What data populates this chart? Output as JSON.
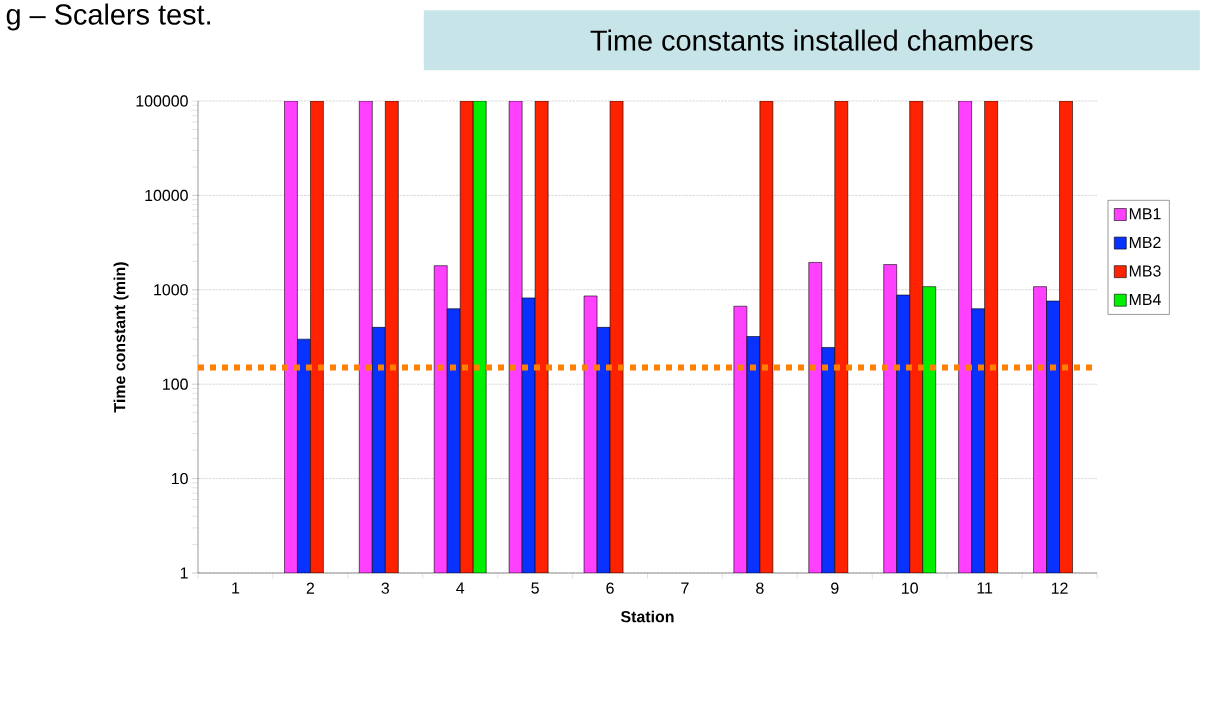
{
  "chart_data": {
    "type": "bar",
    "title": "Time constants installed chambers",
    "xlabel": "Station",
    "ylabel": "Time constant (min)",
    "annotations": [
      "g – Scalers test."
    ],
    "categories": [
      "1",
      "2",
      "3",
      "4",
      "5",
      "6",
      "7",
      "8",
      "9",
      "10",
      "11",
      "12"
    ],
    "series": [
      {
        "name": "MB1",
        "color": "#ff40ff",
        "values": [
          null,
          100000,
          100000,
          1800,
          100000,
          860,
          null,
          670,
          1950,
          1850,
          100000,
          1080
        ]
      },
      {
        "name": "MB2",
        "color": "#0a32ff",
        "values": [
          null,
          300,
          400,
          630,
          820,
          400,
          null,
          320,
          245,
          880,
          630,
          760
        ]
      },
      {
        "name": "MB3",
        "color": "#ff2200",
        "values": [
          null,
          100000,
          100000,
          100000,
          100000,
          100000,
          null,
          100000,
          100000,
          100000,
          100000,
          100000
        ]
      },
      {
        "name": "MB4",
        "color": "#00f000",
        "values": [
          null,
          null,
          null,
          100000,
          null,
          null,
          null,
          null,
          null,
          1080,
          null,
          null
        ]
      }
    ],
    "log": "y",
    "ylim": [
      1,
      100000
    ],
    "yticks": [
      1,
      10,
      100,
      1000,
      10000,
      100000
    ],
    "grid": "y",
    "legend": "right",
    "ref_lines": [
      {
        "axis": "y",
        "value": 150,
        "color": "#ff7f00",
        "line_style": "dotted"
      }
    ]
  }
}
